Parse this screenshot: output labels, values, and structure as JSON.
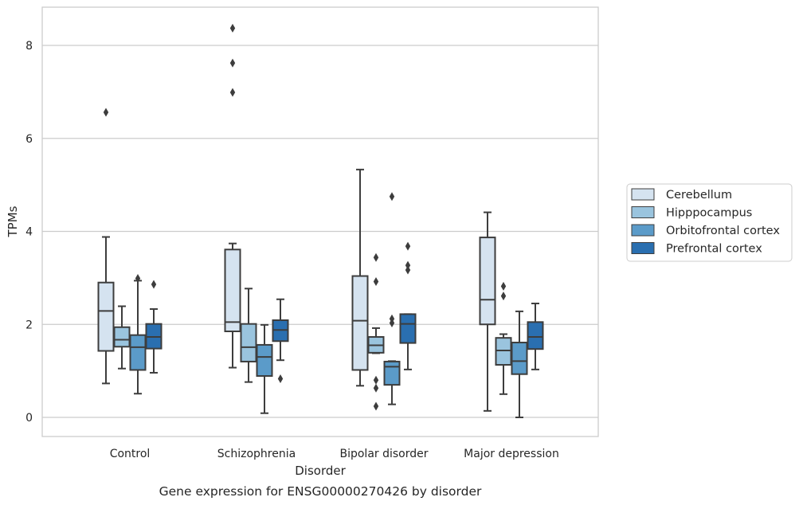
{
  "caption": "Gene expression for ENSG00000270426 by disorder",
  "chart_data": {
    "type": "box",
    "xlabel": "Disorder",
    "ylabel": "TPMs",
    "ylim": [
      -0.4,
      8.8
    ],
    "yticks": [
      0,
      2,
      4,
      6,
      8
    ],
    "grid": "horizontal",
    "legend_position": "right",
    "categories": [
      "Control",
      "Schizophrenia",
      "Bipolar disorder",
      "Major depression"
    ],
    "series": [
      {
        "name": "Cerebellum",
        "color": "#d5e3f0",
        "boxes": [
          {
            "whislo": 0.73,
            "q1": 1.43,
            "med": 2.29,
            "q3": 2.9,
            "whishi": 3.88,
            "fliers": [
              6.56
            ]
          },
          {
            "whislo": 1.07,
            "q1": 1.85,
            "med": 2.05,
            "q3": 3.61,
            "whishi": 3.74,
            "fliers": [
              6.99,
              7.62,
              8.37
            ]
          },
          {
            "whislo": 0.68,
            "q1": 1.02,
            "med": 2.08,
            "q3": 3.04,
            "whishi": 5.33,
            "fliers": []
          },
          {
            "whislo": 0.14,
            "q1": 2.0,
            "med": 2.53,
            "q3": 3.87,
            "whishi": 4.41,
            "fliers": []
          }
        ]
      },
      {
        "name": "Hipppocampus",
        "color": "#9ac4de",
        "boxes": [
          {
            "whislo": 1.05,
            "q1": 1.52,
            "med": 1.67,
            "q3": 1.94,
            "whishi": 2.39,
            "fliers": []
          },
          {
            "whislo": 0.76,
            "q1": 1.2,
            "med": 1.51,
            "q3": 2.01,
            "whishi": 2.77,
            "fliers": []
          },
          {
            "whislo": 1.38,
            "q1": 1.39,
            "med": 1.55,
            "q3": 1.73,
            "whishi": 1.92,
            "fliers": [
              0.24,
              0.63,
              0.8,
              2.92,
              3.44
            ]
          },
          {
            "whislo": 0.5,
            "q1": 1.13,
            "med": 1.44,
            "q3": 1.71,
            "whishi": 1.79,
            "fliers": [
              2.61,
              2.82
            ]
          }
        ]
      },
      {
        "name": "Orbitofrontal cortex",
        "color": "#5b9bc9",
        "boxes": [
          {
            "whislo": 0.51,
            "q1": 1.02,
            "med": 1.51,
            "q3": 1.77,
            "whishi": 2.94,
            "fliers": [
              2.99
            ]
          },
          {
            "whislo": 0.09,
            "q1": 0.89,
            "med": 1.3,
            "q3": 1.56,
            "whishi": 1.99,
            "fliers": []
          },
          {
            "whislo": 0.28,
            "q1": 0.7,
            "med": 1.09,
            "q3": 1.2,
            "whishi": 1.21,
            "fliers": [
              2.03,
              2.12,
              4.75
            ]
          },
          {
            "whislo": 0.0,
            "q1": 0.93,
            "med": 1.21,
            "q3": 1.61,
            "whishi": 2.28,
            "fliers": []
          }
        ]
      },
      {
        "name": "Prefrontal cortex",
        "color": "#2a6fb0",
        "boxes": [
          {
            "whislo": 0.96,
            "q1": 1.48,
            "med": 1.73,
            "q3": 2.01,
            "whishi": 2.33,
            "fliers": [
              2.86
            ]
          },
          {
            "whislo": 1.23,
            "q1": 1.64,
            "med": 1.88,
            "q3": 2.09,
            "whishi": 2.54,
            "fliers": [
              0.83
            ]
          },
          {
            "whislo": 1.03,
            "q1": 1.6,
            "med": 2.01,
            "q3": 2.22,
            "whishi": 2.22,
            "fliers": [
              3.17,
              3.27,
              3.68
            ]
          },
          {
            "whislo": 1.03,
            "q1": 1.47,
            "med": 1.73,
            "q3": 2.05,
            "whishi": 2.45,
            "fliers": []
          }
        ]
      }
    ]
  }
}
